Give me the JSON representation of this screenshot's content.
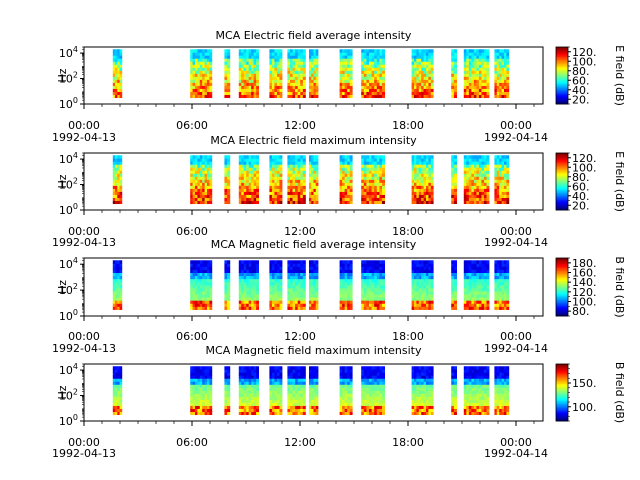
{
  "chart_data": [
    {
      "type": "heatmap",
      "title": "MCA  Electric field average intensity",
      "ylabel": "Hz",
      "y_scale": "log",
      "ylim": [
        1,
        30000
      ],
      "y_ticks": [
        "10^0",
        "10^2",
        "10^4"
      ],
      "x_ticks": [
        "00:00",
        "06:00",
        "12:00",
        "18:00",
        "00:00"
      ],
      "x_dates": [
        "1992-04-13",
        "1992-04-14"
      ],
      "colorbar_label": "E field (dB)",
      "colorbar_ticks": [
        "20.",
        "40.",
        "60.",
        "80.",
        "100.",
        "120."
      ],
      "colorbar_range": [
        10,
        130
      ],
      "data_segments_hours": [
        [
          1.6,
          2.1
        ],
        [
          5.9,
          7.1
        ],
        [
          7.8,
          8.1
        ],
        [
          8.6,
          9.7
        ],
        [
          10.3,
          11.0
        ],
        [
          11.3,
          12.3
        ],
        [
          12.5,
          13.0
        ],
        [
          14.2,
          14.9
        ],
        [
          15.4,
          16.7
        ],
        [
          18.2,
          19.4
        ],
        [
          20.4,
          20.7
        ],
        [
          21.1,
          22.5
        ],
        [
          22.8,
          23.6
        ]
      ],
      "colormap": "jet"
    },
    {
      "type": "heatmap",
      "title": "MCA  Electric field maximum intensity",
      "ylabel": "Hz",
      "y_scale": "log",
      "ylim": [
        1,
        30000
      ],
      "y_ticks": [
        "10^0",
        "10^2",
        "10^4"
      ],
      "x_ticks": [
        "00:00",
        "06:00",
        "12:00",
        "18:00",
        "00:00"
      ],
      "x_dates": [
        "1992-04-13",
        "1992-04-14"
      ],
      "colorbar_label": "E field (dB)",
      "colorbar_ticks": [
        "20.",
        "40.",
        "60.",
        "80.",
        "100.",
        "120."
      ],
      "colorbar_range": [
        10,
        130
      ],
      "data_segments_hours": [
        [
          1.6,
          2.1
        ],
        [
          5.9,
          7.1
        ],
        [
          7.8,
          8.1
        ],
        [
          8.6,
          9.7
        ],
        [
          10.3,
          11.0
        ],
        [
          11.3,
          12.3
        ],
        [
          12.5,
          13.0
        ],
        [
          14.2,
          14.9
        ],
        [
          15.4,
          16.7
        ],
        [
          18.2,
          19.4
        ],
        [
          20.4,
          20.7
        ],
        [
          21.1,
          22.5
        ],
        [
          22.8,
          23.6
        ]
      ],
      "colormap": "jet"
    },
    {
      "type": "heatmap",
      "title": "MCA  Magnetic field average intensity",
      "ylabel": "Hz",
      "y_scale": "log",
      "ylim": [
        1,
        30000
      ],
      "y_ticks": [
        "10^0",
        "10^2",
        "10^4"
      ],
      "x_ticks": [
        "00:00",
        "06:00",
        "12:00",
        "18:00",
        "00:00"
      ],
      "x_dates": [
        "1992-04-13",
        "1992-04-14"
      ],
      "colorbar_label": "B field (dB)",
      "colorbar_ticks": [
        "80.",
        "100.",
        "120.",
        "140.",
        "160.",
        "180."
      ],
      "colorbar_range": [
        70,
        190
      ],
      "data_segments_hours": [
        [
          1.6,
          2.1
        ],
        [
          5.9,
          7.1
        ],
        [
          7.8,
          8.1
        ],
        [
          8.6,
          9.7
        ],
        [
          10.3,
          11.0
        ],
        [
          11.3,
          12.3
        ],
        [
          12.5,
          13.0
        ],
        [
          14.2,
          14.9
        ],
        [
          15.4,
          16.7
        ],
        [
          18.2,
          19.4
        ],
        [
          20.4,
          20.7
        ],
        [
          21.1,
          22.5
        ],
        [
          22.8,
          23.6
        ]
      ],
      "colormap": "jet"
    },
    {
      "type": "heatmap",
      "title": "MCA  Magnetic field maximum intensity",
      "ylabel": "Hz",
      "y_scale": "log",
      "ylim": [
        1,
        30000
      ],
      "y_ticks": [
        "10^0",
        "10^2",
        "10^4"
      ],
      "x_ticks": [
        "00:00",
        "06:00",
        "12:00",
        "18:00",
        "00:00"
      ],
      "x_dates": [
        "1992-04-13",
        "1992-04-14"
      ],
      "colorbar_label": "B field (dB)",
      "colorbar_ticks": [
        "100.",
        "150."
      ],
      "colorbar_range": [
        70,
        190
      ],
      "data_segments_hours": [
        [
          1.6,
          2.1
        ],
        [
          5.9,
          7.1
        ],
        [
          7.8,
          8.1
        ],
        [
          8.6,
          9.7
        ],
        [
          10.3,
          11.0
        ],
        [
          11.3,
          12.3
        ],
        [
          12.5,
          13.0
        ],
        [
          14.2,
          14.9
        ],
        [
          15.4,
          16.7
        ],
        [
          18.2,
          19.4
        ],
        [
          20.4,
          20.7
        ],
        [
          21.1,
          22.5
        ],
        [
          22.8,
          23.6
        ]
      ],
      "colormap": "jet"
    }
  ]
}
